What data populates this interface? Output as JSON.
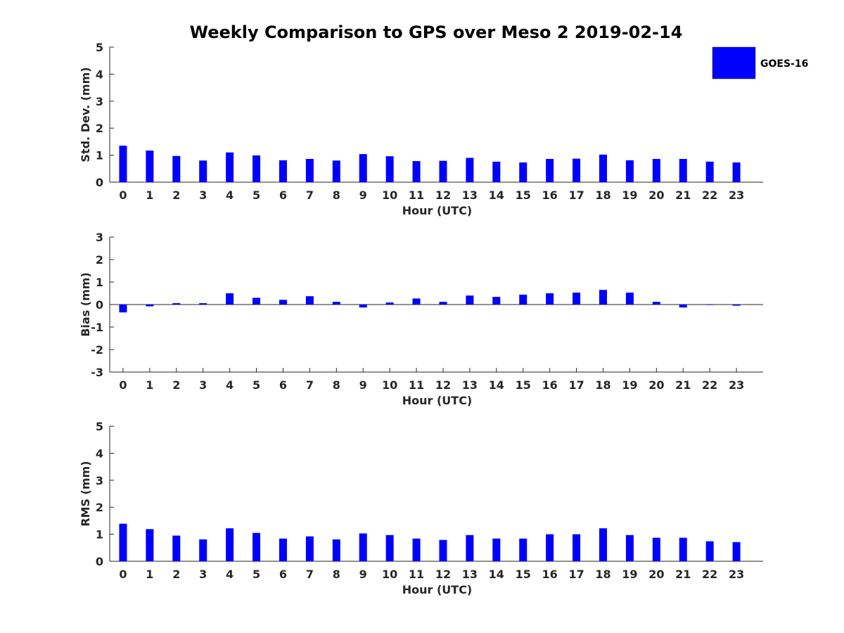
{
  "chart_data": {
    "type": "bar",
    "title": "Weekly Comparison to GPS over Meso 2 2019-02-14",
    "legend": {
      "entries": [
        "GOES-16"
      ],
      "placement": "top-right"
    },
    "bar_color": "#0000ff",
    "categories": [
      "0",
      "1",
      "2",
      "3",
      "4",
      "5",
      "6",
      "7",
      "8",
      "9",
      "10",
      "11",
      "12",
      "13",
      "14",
      "15",
      "16",
      "17",
      "18",
      "19",
      "20",
      "21",
      "22",
      "23"
    ],
    "panels": [
      {
        "id": "stddev",
        "ylabel": "Std. Dev. (mm)",
        "xlabel": "Hour (UTC)",
        "ylim": [
          0,
          5
        ],
        "yticks": [
          "0",
          "1",
          "2",
          "3",
          "4",
          "5"
        ],
        "series": [
          {
            "name": "GOES-16",
            "values": [
              1.35,
              1.17,
              0.97,
              0.8,
              1.1,
              0.99,
              0.81,
              0.86,
              0.8,
              1.04,
              0.96,
              0.78,
              0.79,
              0.9,
              0.76,
              0.73,
              0.86,
              0.87,
              1.02,
              0.81,
              0.86,
              0.86,
              0.76,
              0.73
            ]
          }
        ]
      },
      {
        "id": "bias",
        "ylabel": "Bias (mm)",
        "xlabel": "Hour (UTC)",
        "ylim": [
          -3,
          3
        ],
        "yticks": [
          "-3",
          "-2",
          "-1",
          "0",
          "1",
          "2",
          "3"
        ],
        "series": [
          {
            "name": "GOES-16",
            "values": [
              -0.35,
              -0.08,
              0.06,
              0.06,
              0.5,
              0.3,
              0.21,
              0.37,
              0.12,
              -0.13,
              0.09,
              0.27,
              0.12,
              0.4,
              0.34,
              0.44,
              0.5,
              0.53,
              0.65,
              0.53,
              0.12,
              -0.13,
              -0.02,
              -0.05
            ]
          }
        ]
      },
      {
        "id": "rms",
        "ylabel": "RMS (mm)",
        "xlabel": "Hour (UTC)",
        "ylim": [
          0,
          5
        ],
        "yticks": [
          "0",
          "1",
          "2",
          "3",
          "4",
          "5"
        ],
        "series": [
          {
            "name": "GOES-16",
            "values": [
              1.39,
              1.19,
              0.95,
              0.81,
              1.22,
              1.05,
              0.84,
              0.92,
              0.81,
              1.03,
              0.97,
              0.84,
              0.79,
              0.97,
              0.84,
              0.84,
              1.0,
              1.0,
              1.22,
              0.97,
              0.87,
              0.87,
              0.74,
              0.71
            ]
          }
        ]
      }
    ]
  }
}
